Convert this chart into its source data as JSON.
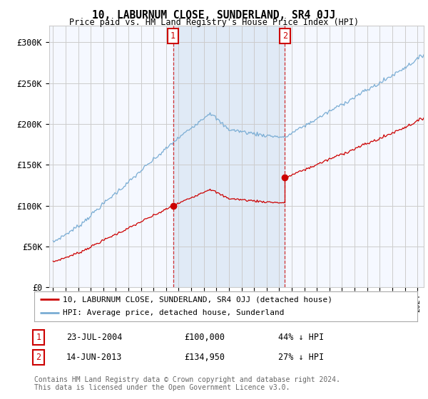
{
  "title": "10, LABURNUM CLOSE, SUNDERLAND, SR4 0JJ",
  "subtitle": "Price paid vs. HM Land Registry's House Price Index (HPI)",
  "ylabel_ticks": [
    "£0",
    "£50K",
    "£100K",
    "£150K",
    "£200K",
    "£250K",
    "£300K"
  ],
  "ytick_values": [
    0,
    50000,
    100000,
    150000,
    200000,
    250000,
    300000
  ],
  "ylim": [
    0,
    320000
  ],
  "hpi_color": "#7aadd4",
  "price_color": "#cc0000",
  "sale1_year": 2004.55,
  "sale1_price": 100000,
  "sale2_year": 2013.45,
  "sale2_price": 134950,
  "legend_label1": "10, LABURNUM CLOSE, SUNDERLAND, SR4 0JJ (detached house)",
  "legend_label2": "HPI: Average price, detached house, Sunderland",
  "annotation1_date": "23-JUL-2004",
  "annotation1_price": "£100,000",
  "annotation1_hpi": "44% ↓ HPI",
  "annotation2_date": "14-JUN-2013",
  "annotation2_price": "£134,950",
  "annotation2_hpi": "27% ↓ HPI",
  "footer": "Contains HM Land Registry data © Crown copyright and database right 2024.\nThis data is licensed under the Open Government Licence v3.0.",
  "background_color": "#ffffff",
  "plot_bg_color": "#f5f8ff",
  "shade_color": "#dde8f5",
  "grid_color": "#cccccc",
  "xstart": 1995,
  "xend": 2024
}
